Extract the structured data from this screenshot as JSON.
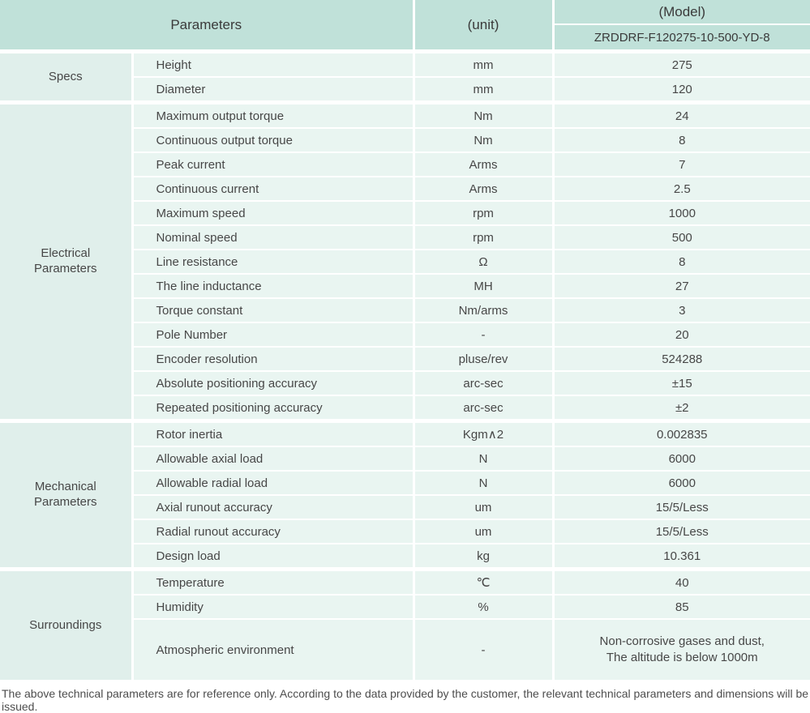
{
  "header": {
    "parameters_label": "Parameters",
    "unit_label": "(unit)",
    "model_label": "(Model)",
    "model_code": "ZRDDRF-F120275-10-500-YD-8"
  },
  "sections": [
    {
      "category": "Specs",
      "rows": [
        {
          "param": "Height",
          "unit": "mm",
          "value": "275"
        },
        {
          "param": "Diameter",
          "unit": "mm",
          "value": "120"
        }
      ]
    },
    {
      "category": "Electrical Parameters",
      "rows": [
        {
          "param": "Maximum output torque",
          "unit": "Nm",
          "value": "24"
        },
        {
          "param": "Continuous output torque",
          "unit": "Nm",
          "value": "8"
        },
        {
          "param": "Peak current",
          "unit": "Arms",
          "value": "7"
        },
        {
          "param": "Continuous current",
          "unit": "Arms",
          "value": "2.5"
        },
        {
          "param": "Maximum speed",
          "unit": "rpm",
          "value": "1000"
        },
        {
          "param": "Nominal speed",
          "unit": "rpm",
          "value": "500"
        },
        {
          "param": "Line resistance",
          "unit": "Ω",
          "value": "8"
        },
        {
          "param": "The line inductance",
          "unit": "MH",
          "value": "27"
        },
        {
          "param": "Torque constant",
          "unit": "Nm/arms",
          "value": "3"
        },
        {
          "param": "Pole Number",
          "unit": "-",
          "value": "20"
        },
        {
          "param": "Encoder resolution",
          "unit": "pluse/rev",
          "value": "524288"
        },
        {
          "param": "Absolute positioning accuracy",
          "unit": "arc-sec",
          "value": "±15"
        },
        {
          "param": "Repeated positioning accuracy",
          "unit": "arc-sec",
          "value": "±2"
        }
      ]
    },
    {
      "category": "Mechanical Parameters",
      "rows": [
        {
          "param": "Rotor inertia",
          "unit": "Kgm∧2",
          "value": "0.002835"
        },
        {
          "param": "Allowable axial load",
          "unit": "N",
          "value": "6000"
        },
        {
          "param": "Allowable radial load",
          "unit": "N",
          "value": "6000"
        },
        {
          "param": "Axial runout accuracy",
          "unit": "um",
          "value": "15/5/Less"
        },
        {
          "param": "Radial runout accuracy",
          "unit": "um",
          "value": "15/5/Less"
        },
        {
          "param": "Design load",
          "unit": "kg",
          "value": "10.361"
        }
      ]
    },
    {
      "category": "Surroundings",
      "rows": [
        {
          "param": "Temperature",
          "unit": "℃",
          "value": "40"
        },
        {
          "param": "Humidity",
          "unit": "%",
          "value": "85"
        },
        {
          "param": "Atmospheric environment",
          "unit": "-",
          "value": "Non-corrosive gases and dust,",
          "value2": "The altitude is below 1000m"
        }
      ]
    }
  ],
  "footer": {
    "note": "The above technical parameters are for reference only. According to the data provided by the customer, the relevant technical parameters and dimensions will be issued."
  },
  "colors": {
    "header_green": "#c0e1d9",
    "category_bg": "#e0efeb",
    "cell_bg": "#e9f5f1",
    "divider": "#ffffff",
    "text": "#474747"
  }
}
